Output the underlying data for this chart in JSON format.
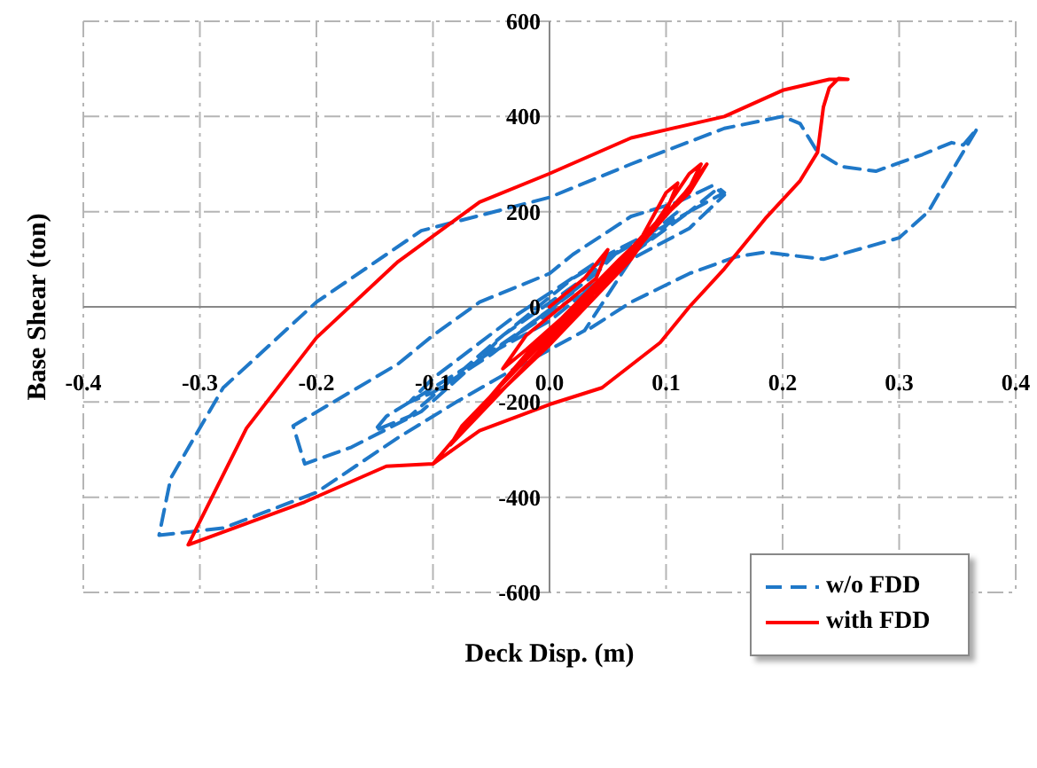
{
  "chart_data": {
    "type": "line",
    "xlabel": "Deck Disp. (m)",
    "ylabel": "Base Shear (ton)",
    "xlim": [
      -0.4,
      0.4
    ],
    "xticks": [
      -0.4,
      -0.3,
      -0.2,
      -0.1,
      {
        "value": 0,
        "label": "0.0"
      },
      0.1,
      0.2,
      0.3,
      0.4
    ],
    "ylim": [
      -600,
      600
    ],
    "yticks": [
      -600,
      -400,
      -200,
      0,
      200,
      400,
      600
    ],
    "grid": true,
    "legend": "bottom right",
    "marker": "none",
    "series": [
      {
        "name": "w/o FDD",
        "color": "#1f78c8",
        "line_style": "dashed",
        "x": [
          0,
          0.02,
          -0.03,
          -0.06,
          -0.04,
          0.03,
          0.06,
          0.04,
          -0.05,
          -0.1,
          -0.12,
          -0.1,
          -0.03,
          0.05,
          0.09,
          0.11,
          0.1,
          0.04,
          -0.06,
          -0.14,
          -0.15,
          -0.12,
          -0.05,
          0.02,
          0.07,
          0.12,
          0.145,
          0.15,
          0.12,
          0.07,
          0,
          -0.06,
          -0.11,
          -0.17,
          -0.21,
          -0.22,
          -0.13,
          -0.1,
          -0.06,
          0,
          0.02,
          0.07,
          0.11,
          0.14,
          0.15,
          0.12,
          0.07,
          0.03,
          -0.03,
          -0.08,
          -0.13,
          -0.2,
          -0.28,
          -0.335,
          -0.325,
          -0.28,
          -0.2,
          -0.11,
          0,
          0.07,
          0.15,
          0.2,
          0.215,
          0.23,
          0.25,
          0.28,
          0.32,
          0.345,
          0.355,
          0.367,
          0.35,
          0.325,
          0.3,
          0.235,
          0.185,
          0.16,
          0.12,
          0.07,
          0.035
        ],
        "values": [
          0,
          30,
          -60,
          -110,
          -60,
          60,
          120,
          70,
          -100,
          -180,
          -200,
          -150,
          -20,
          110,
          160,
          200,
          170,
          50,
          -110,
          -230,
          -260,
          -230,
          -80,
          60,
          130,
          200,
          250,
          240,
          200,
          110,
          -30,
          -110,
          -220,
          -295,
          -330,
          -250,
          -120,
          -60,
          10,
          70,
          110,
          190,
          220,
          255,
          235,
          165,
          100,
          -50,
          -130,
          -200,
          -275,
          -390,
          -465,
          -480,
          -360,
          -170,
          10,
          160,
          230,
          300,
          375,
          400,
          385,
          325,
          295,
          285,
          320,
          345,
          340,
          375,
          305,
          200,
          145,
          100,
          115,
          105,
          70,
          10,
          -45
        ]
      },
      {
        "name": "with FDD",
        "color": "#ff0000",
        "line_style": "solid",
        "x": [
          0,
          0.03,
          0.05,
          0.04,
          -0.02,
          -0.04,
          -0.02,
          0.04,
          0.08,
          0.1,
          0.11,
          0.1,
          0.04,
          -0.04,
          -0.07,
          -0.06,
          0,
          0.07,
          0.12,
          0.13,
          0.12,
          0.05,
          -0.05,
          -0.085,
          -0.075,
          0,
          0.06,
          0.11,
          0.135,
          0.12,
          0.06,
          -0.02,
          -0.1,
          -0.06,
          0,
          0.045,
          0.095,
          0.12,
          0.15,
          0.185,
          0.215,
          0.23,
          0.235,
          0.24,
          0.248,
          0.256,
          0.24,
          0.2,
          0.15,
          0.07,
          0,
          -0.06,
          -0.13,
          -0.2,
          -0.26,
          -0.31,
          -0.21,
          -0.14,
          -0.1
        ],
        "values": [
          0,
          60,
          120,
          60,
          -60,
          -130,
          -90,
          40,
          150,
          240,
          260,
          200,
          40,
          -160,
          -250,
          -220,
          -80,
          100,
          280,
          300,
          250,
          60,
          -200,
          -290,
          -250,
          -60,
          80,
          220,
          300,
          240,
          100,
          -100,
          -330,
          -260,
          -205,
          -170,
          -75,
          0,
          80,
          185,
          265,
          325,
          420,
          460,
          480,
          478,
          478,
          455,
          400,
          355,
          280,
          220,
          95,
          -65,
          -255,
          -500,
          -410,
          -335,
          -330
        ]
      }
    ]
  }
}
